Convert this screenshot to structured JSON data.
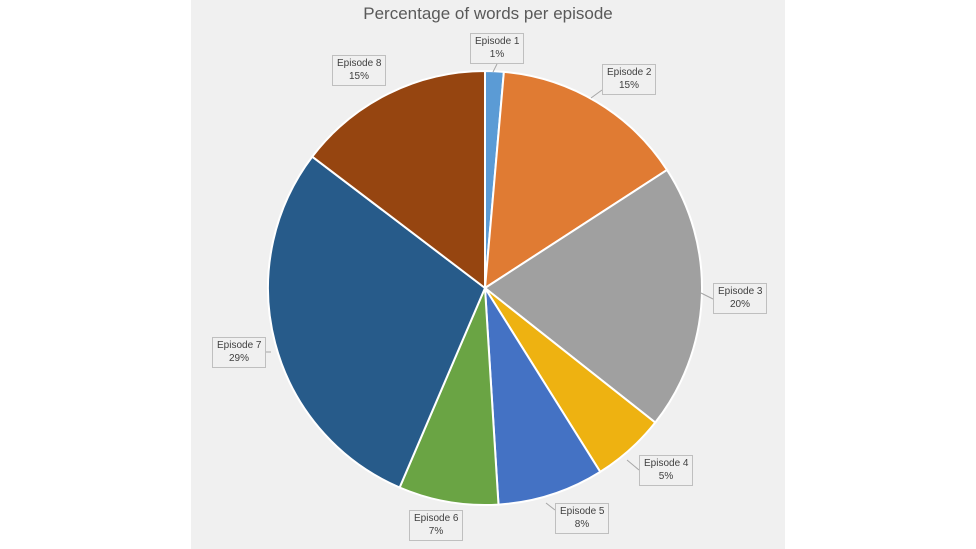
{
  "chart_data": {
    "type": "pie",
    "title": "Percentage of words per episode",
    "categories": [
      "Episode 1",
      "Episode 2",
      "Episode 3",
      "Episode 4",
      "Episode 5",
      "Episode 6",
      "Episode 7",
      "Episode 8"
    ],
    "values": [
      1.4,
      14.6,
      20,
      5.5,
      8,
      7.5,
      29.2,
      14.8
    ],
    "value_labels": [
      "1%",
      "15%",
      "20%",
      "5%",
      "8%",
      "7%",
      "29%",
      "15%"
    ],
    "colors": [
      "#5b9bd5",
      "#e07b33",
      "#a0a0a0",
      "#eeb211",
      "#4472c4",
      "#6aa444",
      "#275b8a",
      "#964510"
    ],
    "start_angle_deg": 0,
    "direction": "clockwise",
    "legend": "none",
    "data_labels": "callouts"
  }
}
